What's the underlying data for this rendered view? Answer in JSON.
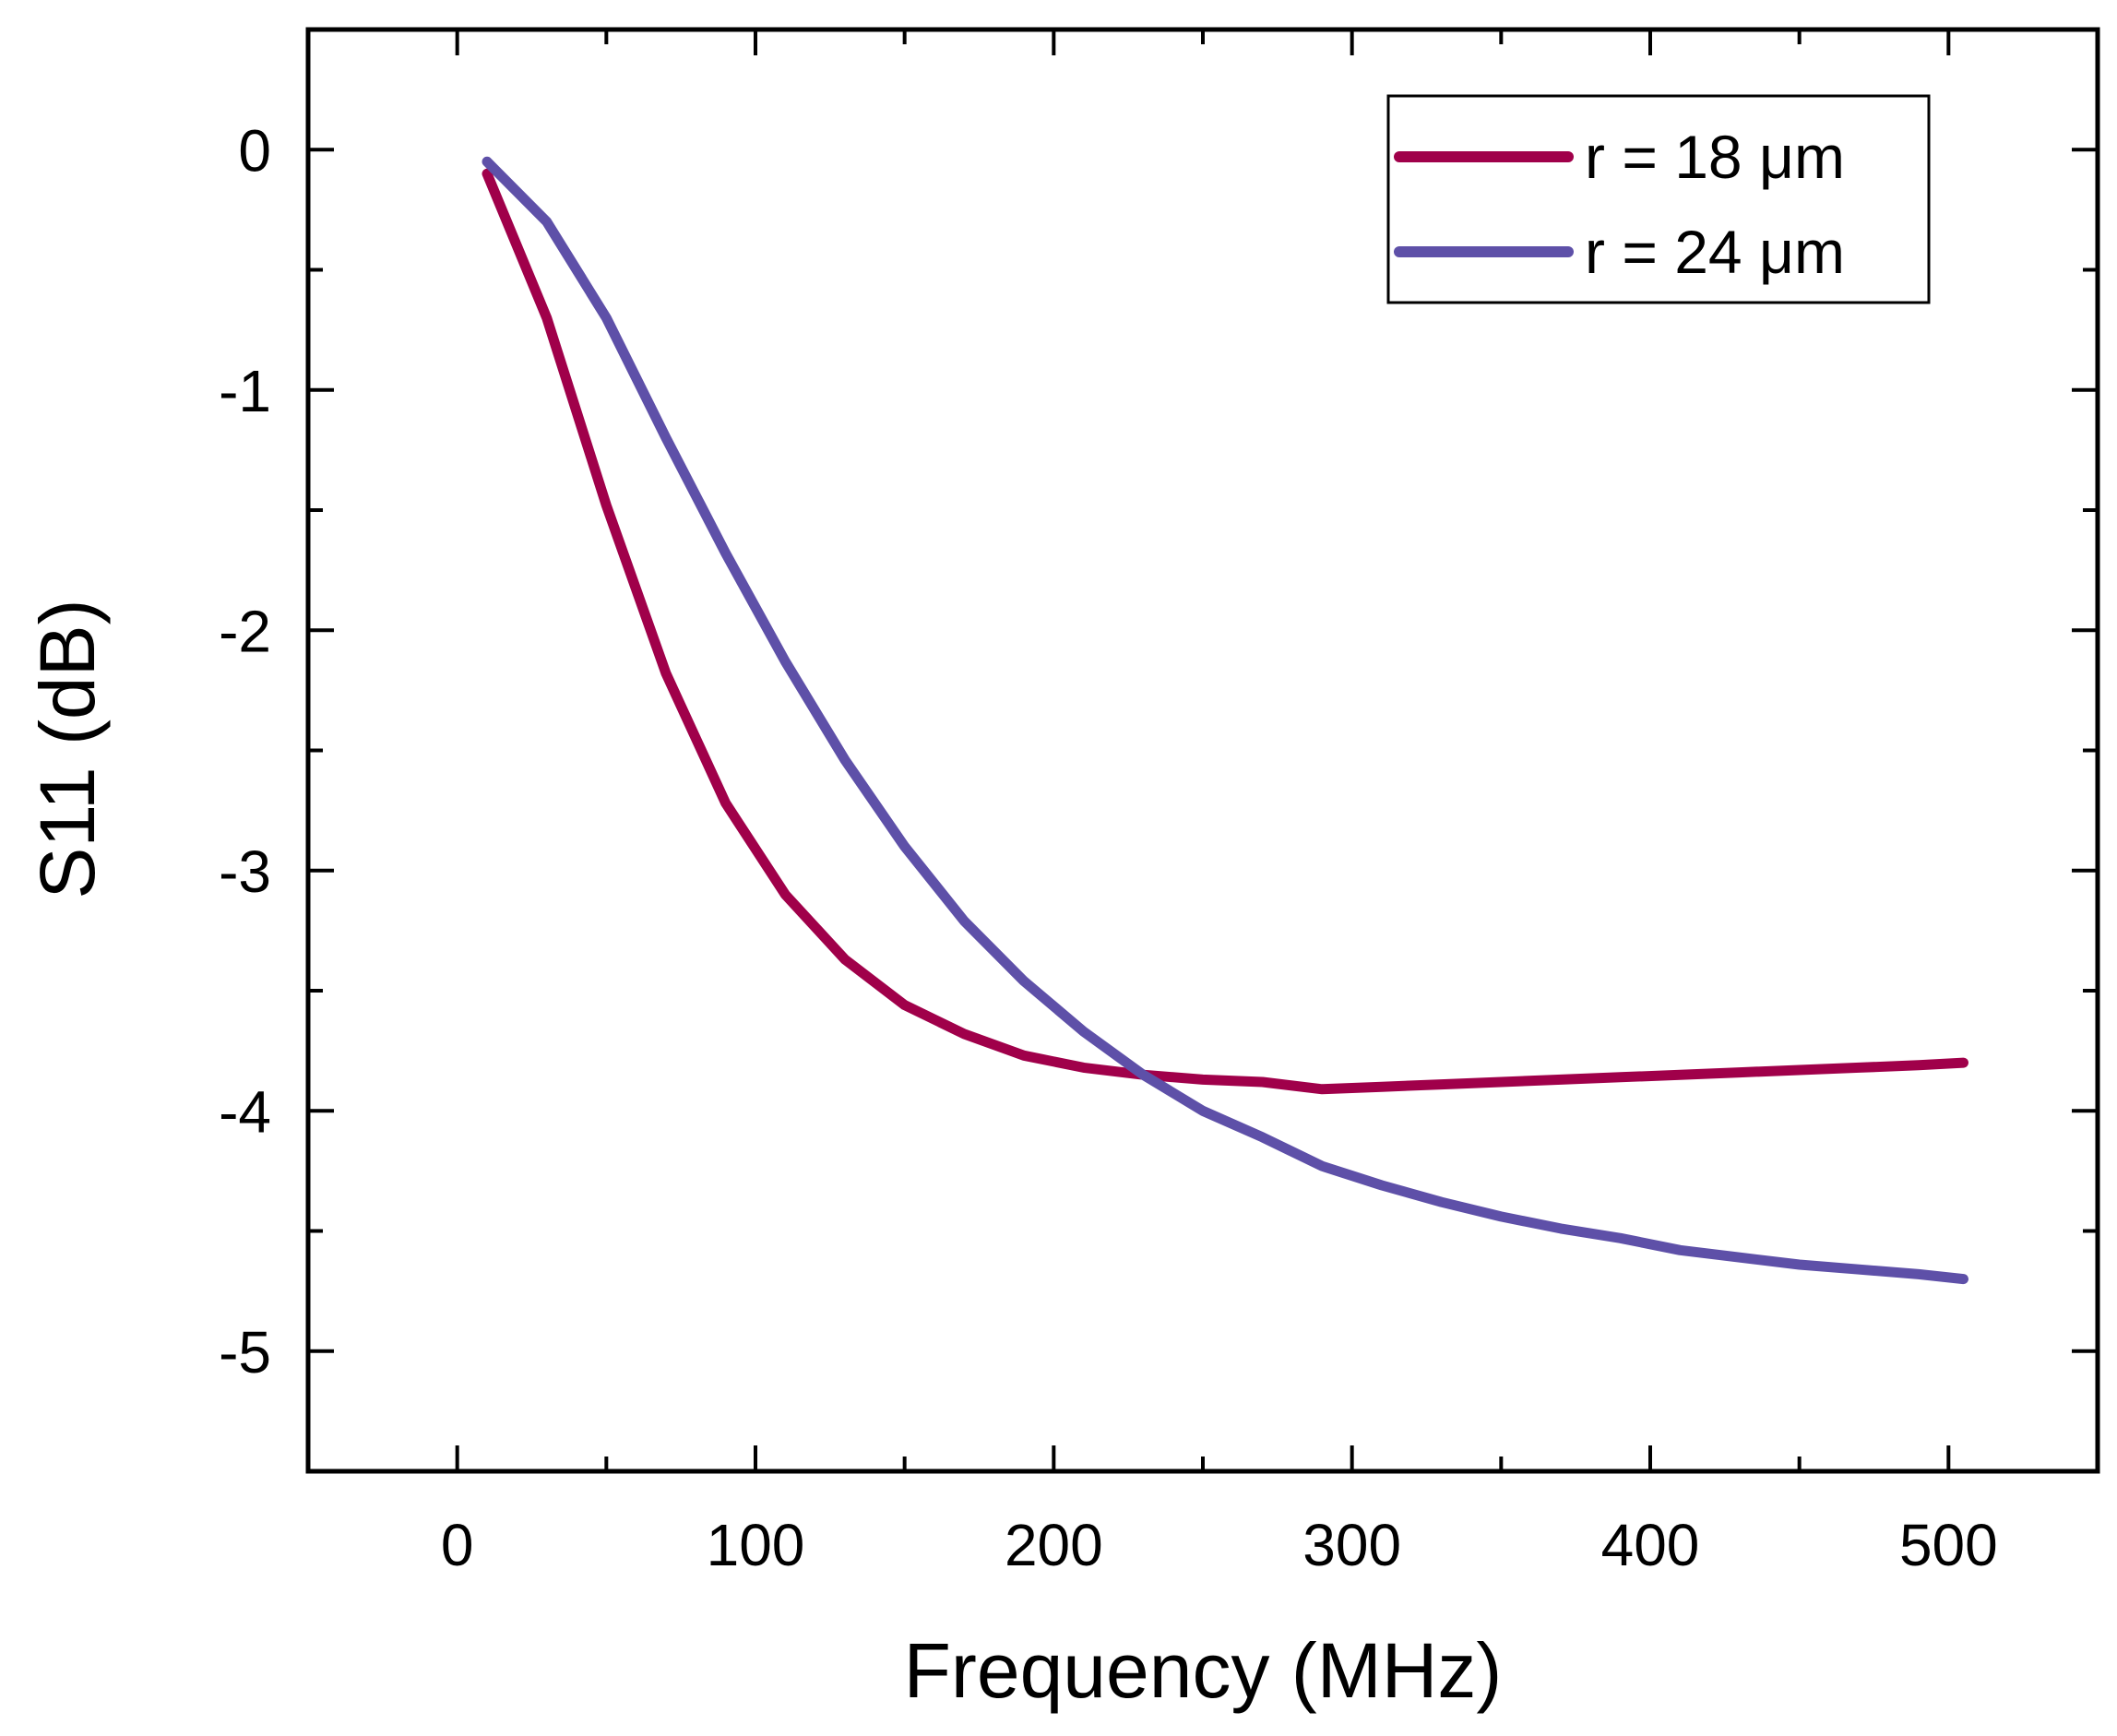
{
  "chart_data": {
    "type": "line",
    "title": "",
    "xlabel": "Frequency (MHz)",
    "ylabel": "S11 (dB)",
    "xlim": [
      -50,
      550
    ],
    "ylim": [
      -5.5,
      0.5
    ],
    "xticks": [
      0,
      100,
      200,
      300,
      400,
      500
    ],
    "yticks": [
      0,
      -1,
      -2,
      -3,
      -4,
      -5
    ],
    "grid": false,
    "legend_position": "top-right",
    "series": [
      {
        "name": "r = 18 μm",
        "color": "#A0004A",
        "x": [
          10,
          30,
          50,
          70,
          90,
          110,
          130,
          150,
          170,
          190,
          210,
          230,
          250,
          270,
          290,
          310,
          330,
          350,
          370,
          390,
          410,
          430,
          450,
          470,
          490,
          505
        ],
        "y": [
          -0.1,
          -0.7,
          -1.48,
          -2.18,
          -2.72,
          -3.1,
          -3.37,
          -3.56,
          -3.68,
          -3.77,
          -3.82,
          -3.85,
          -3.87,
          -3.88,
          -3.91,
          -3.9,
          -3.89,
          -3.88,
          -3.87,
          -3.86,
          -3.85,
          -3.84,
          -3.83,
          -3.82,
          -3.81,
          -3.8
        ]
      },
      {
        "name": "r = 24 μm",
        "color": "#5E50A8",
        "x": [
          10,
          30,
          50,
          70,
          90,
          110,
          130,
          150,
          170,
          190,
          210,
          230,
          250,
          270,
          290,
          310,
          330,
          350,
          370,
          390,
          410,
          430,
          450,
          470,
          490,
          505
        ],
        "y": [
          -0.05,
          -0.3,
          -0.7,
          -1.2,
          -1.68,
          -2.13,
          -2.54,
          -2.9,
          -3.21,
          -3.46,
          -3.67,
          -3.85,
          -4.0,
          -4.11,
          -4.23,
          -4.31,
          -4.38,
          -4.44,
          -4.49,
          -4.53,
          -4.58,
          -4.61,
          -4.64,
          -4.66,
          -4.68,
          -4.7
        ]
      }
    ]
  }
}
